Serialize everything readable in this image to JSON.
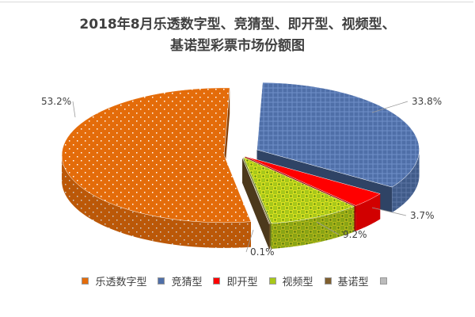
{
  "chart_data": {
    "type": "pie",
    "style": "3d-exploded",
    "title_line1": "2018年8月乐透数字型、竞猜型、即开型、视频型、",
    "title_line2": "基诺型彩票市场份额图",
    "legend_position": "bottom",
    "slices": [
      {
        "name": "竞猜型",
        "value": 33.8,
        "label": "33.8%",
        "color": "#4F6FA8"
      },
      {
        "name": "即开型",
        "value": 3.7,
        "label": "3.7%",
        "color": "#FF0000"
      },
      {
        "name": "视频型",
        "value": 9.2,
        "label": "9.2%",
        "color": "#A8C81A"
      },
      {
        "name": "基诺型",
        "value": 0.1,
        "label": "0.1%",
        "color": "#7F5F2F"
      },
      {
        "name": "乐透数字型",
        "value": 53.2,
        "label": "53.2%",
        "color": "#E46C0A"
      }
    ],
    "legend": [
      {
        "name": "乐透数字型",
        "color": "#E46C0A"
      },
      {
        "name": "竞猜型",
        "color": "#4F6FA8"
      },
      {
        "name": "即开型",
        "color": "#FF0000"
      },
      {
        "name": "视频型",
        "color": "#A8C81A"
      },
      {
        "name": "基诺型",
        "color": "#7F5F2F"
      },
      {
        "name": "",
        "color": "#BBBBBB"
      }
    ]
  }
}
